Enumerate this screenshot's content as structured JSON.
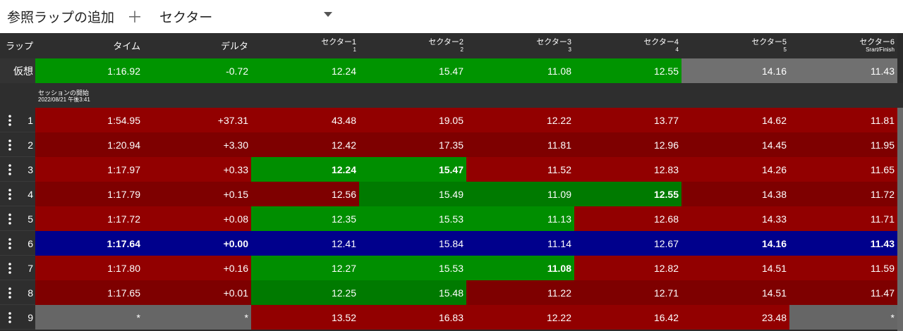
{
  "toolbar": {
    "add_reference": "参照ラップの追加",
    "plus": "＋",
    "view": "セクター"
  },
  "table": {
    "headers": [
      {
        "label": "ラップ"
      },
      {
        "label": "タイム"
      },
      {
        "label": "デルタ"
      },
      {
        "label": "セクター1",
        "sub": "1"
      },
      {
        "label": "セクター2",
        "sub": "2"
      },
      {
        "label": "セクター3",
        "sub": "3"
      },
      {
        "label": "セクター4",
        "sub": "4"
      },
      {
        "label": "セクター5",
        "sub": "5"
      },
      {
        "label": "セクター6",
        "sub": "Srart/Finish"
      }
    ],
    "virtual": {
      "label": "仮想",
      "cells": [
        "1:16.92",
        "-0.72",
        "12.24",
        "15.47",
        "11.08",
        "12.55",
        "14.16",
        "11.43"
      ],
      "colors": [
        "g",
        "g",
        "g",
        "g",
        "g",
        "g",
        "x",
        "x"
      ]
    },
    "session": {
      "title": "セッションの開始",
      "time": "2022/08/21 午後3:41"
    },
    "rows": [
      {
        "lap": "1",
        "cells": [
          "1:54.95",
          "+37.31",
          "43.48",
          "19.05",
          "12.22",
          "13.77",
          "14.62",
          "11.81"
        ],
        "colors": [
          "r",
          "r",
          "r",
          "r",
          "r",
          "r",
          "r",
          "r"
        ],
        "bold": []
      },
      {
        "lap": "2",
        "cells": [
          "1:20.94",
          "+3.30",
          "12.42",
          "17.35",
          "11.81",
          "12.96",
          "14.45",
          "11.95"
        ],
        "colors": [
          "r",
          "r",
          "r",
          "r",
          "r",
          "r",
          "r",
          "r"
        ],
        "bold": []
      },
      {
        "lap": "3",
        "cells": [
          "1:17.97",
          "+0.33",
          "12.24",
          "15.47",
          "11.52",
          "12.83",
          "14.26",
          "11.65"
        ],
        "colors": [
          "r",
          "r",
          "g",
          "g",
          "r",
          "r",
          "r",
          "r"
        ],
        "bold": [
          2,
          3
        ]
      },
      {
        "lap": "4",
        "cells": [
          "1:17.79",
          "+0.15",
          "12.56",
          "15.49",
          "11.09",
          "12.55",
          "14.38",
          "11.72"
        ],
        "colors": [
          "r",
          "r",
          "r",
          "g",
          "g",
          "g",
          "r",
          "r"
        ],
        "bold": [
          5
        ]
      },
      {
        "lap": "5",
        "cells": [
          "1:17.72",
          "+0.08",
          "12.35",
          "15.53",
          "11.13",
          "12.68",
          "14.33",
          "11.71"
        ],
        "colors": [
          "r",
          "r",
          "g",
          "g",
          "g",
          "r",
          "r",
          "r"
        ],
        "bold": []
      },
      {
        "lap": "6",
        "cells": [
          "1:17.64",
          "+0.00",
          "12.41",
          "15.84",
          "11.14",
          "12.67",
          "14.16",
          "11.43"
        ],
        "colors": [
          "b",
          "b",
          "b",
          "b",
          "b",
          "b",
          "b",
          "b"
        ],
        "bold": [
          0,
          1,
          6,
          7
        ]
      },
      {
        "lap": "7",
        "cells": [
          "1:17.80",
          "+0.16",
          "12.27",
          "15.53",
          "11.08",
          "12.82",
          "14.51",
          "11.59"
        ],
        "colors": [
          "r",
          "r",
          "g",
          "g",
          "g",
          "r",
          "r",
          "r"
        ],
        "bold": [
          4
        ]
      },
      {
        "lap": "8",
        "cells": [
          "1:17.65",
          "+0.01",
          "12.25",
          "15.48",
          "11.22",
          "12.71",
          "14.51",
          "11.47"
        ],
        "colors": [
          "r",
          "r",
          "g",
          "g",
          "r",
          "r",
          "r",
          "r"
        ],
        "bold": []
      },
      {
        "lap": "9",
        "cells": [
          "*",
          "*",
          "13.52",
          "16.83",
          "12.22",
          "16.42",
          "23.48",
          "*"
        ],
        "colors": [
          "x",
          "x",
          "r",
          "r",
          "r",
          "r",
          "r",
          "x"
        ],
        "bold": []
      }
    ]
  }
}
